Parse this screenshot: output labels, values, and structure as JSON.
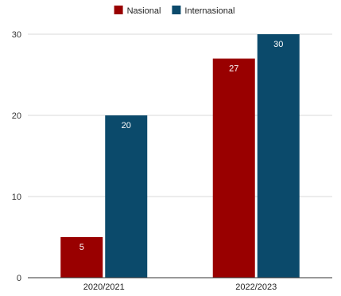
{
  "chart_data": {
    "type": "bar",
    "title": "",
    "xlabel": "",
    "ylabel": "",
    "categories": [
      "2020/2021",
      "2022/2023"
    ],
    "series": [
      {
        "name": "Nasional",
        "values": [
          5,
          27
        ],
        "color": "#990000"
      },
      {
        "name": "Internasional",
        "values": [
          20,
          30
        ],
        "color": "#0b4a6b"
      }
    ],
    "ylim": [
      0,
      30
    ],
    "yticks": [
      0,
      10,
      20,
      30
    ],
    "grid": true,
    "legend": "top-center",
    "data_labels": true
  }
}
